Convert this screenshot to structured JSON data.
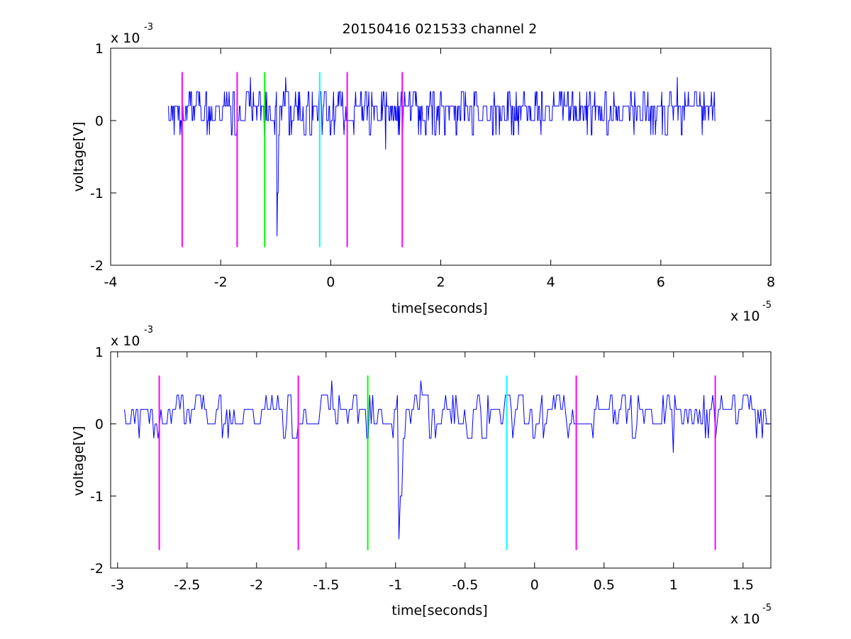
{
  "chart_data": [
    {
      "type": "line",
      "title": "20150416 021533 channel 2",
      "xlabel": "time[seconds]",
      "ylabel": "voltage[V]",
      "xlim": [
        -4,
        8
      ],
      "ylim": [
        -2,
        1
      ],
      "x_ticks": [
        "-4",
        "-2",
        "0",
        "2",
        "4",
        "6",
        "8"
      ],
      "y_ticks": [
        "-2",
        "-1",
        "0",
        "1"
      ],
      "x_exponent": {
        "base": "x 10",
        "power": "-5"
      },
      "y_exponent": {
        "base": "x 10",
        "power": "-3"
      },
      "signal": {
        "color": "#0000ff",
        "x_start": -2.95,
        "x_end": 7.0,
        "baseline_levels": [
          0.0,
          0.2,
          0.4
        ],
        "spikes": [
          {
            "x": -0.98,
            "y": -1.6
          },
          {
            "x": -0.96,
            "y": -1.0
          },
          {
            "x": -0.82,
            "y": 0.6
          },
          {
            "x": -1.46,
            "y": 0.6
          },
          {
            "x": 1.0,
            "y": -0.4
          },
          {
            "x": 6.3,
            "y": 0.6
          }
        ]
      },
      "markers": [
        {
          "x": -2.7,
          "color": "#ff00ff",
          "y_top": 0.67,
          "y_bottom": -1.75
        },
        {
          "x": -1.7,
          "color": "#ff00ff",
          "y_top": 0.67,
          "y_bottom": -1.75
        },
        {
          "x": -1.2,
          "color": "#00ff00",
          "y_top": 0.67,
          "y_bottom": -1.75
        },
        {
          "x": -0.2,
          "color": "#00ffff",
          "y_top": 0.67,
          "y_bottom": -1.75
        },
        {
          "x": 0.3,
          "color": "#ff00ff",
          "y_top": 0.67,
          "y_bottom": -1.75
        },
        {
          "x": 1.3,
          "color": "#ff00ff",
          "y_top": 0.67,
          "y_bottom": -1.75
        }
      ]
    },
    {
      "type": "line",
      "title": "",
      "xlabel": "time[seconds]",
      "ylabel": "voltage[V]",
      "xlim": [
        -3.05,
        1.7
      ],
      "ylim": [
        -2,
        1
      ],
      "x_ticks": [
        "-3",
        "-2.5",
        "-2",
        "-1.5",
        "-1",
        "-0.5",
        "0",
        "0.5",
        "1",
        "1.5"
      ],
      "y_ticks": [
        "-2",
        "-1",
        "0",
        "1"
      ],
      "x_exponent": {
        "base": "x 10",
        "power": "-5"
      },
      "y_exponent": {
        "base": "x 10",
        "power": "-3"
      },
      "signal": {
        "color": "#0000ff",
        "x_start": -2.95,
        "x_end": 1.7,
        "baseline_levels": [
          0.0,
          0.2,
          0.4
        ],
        "spikes": [
          {
            "x": -0.98,
            "y": -1.6
          },
          {
            "x": -0.96,
            "y": -1.0
          },
          {
            "x": -0.82,
            "y": 0.6
          },
          {
            "x": -1.46,
            "y": 0.6
          },
          {
            "x": 1.0,
            "y": -0.4
          }
        ]
      },
      "markers": [
        {
          "x": -2.7,
          "color": "#ff00ff",
          "y_top": 0.67,
          "y_bottom": -1.75
        },
        {
          "x": -1.7,
          "color": "#ff00ff",
          "y_top": 0.67,
          "y_bottom": -1.75
        },
        {
          "x": -1.2,
          "color": "#00ff00",
          "y_top": 0.67,
          "y_bottom": -1.75
        },
        {
          "x": -0.2,
          "color": "#00ffff",
          "y_top": 0.67,
          "y_bottom": -1.75
        },
        {
          "x": 0.3,
          "color": "#ff00ff",
          "y_top": 0.67,
          "y_bottom": -1.75
        },
        {
          "x": 1.3,
          "color": "#ff00ff",
          "y_top": 0.67,
          "y_bottom": -1.75
        }
      ]
    }
  ]
}
